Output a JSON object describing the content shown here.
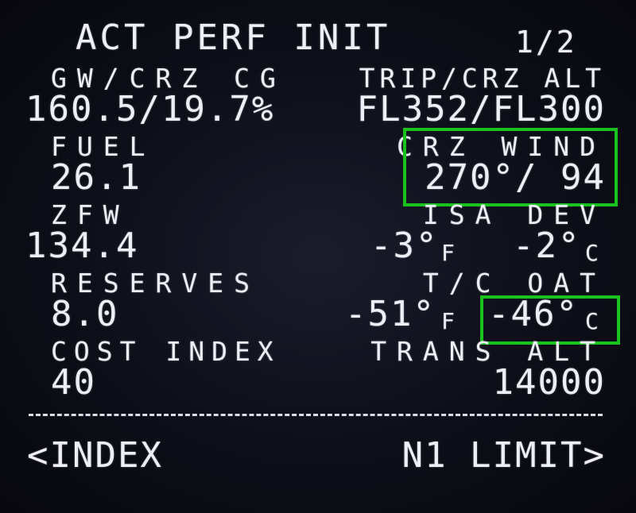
{
  "header": {
    "title": "ACT PERF INIT",
    "page": "1/2"
  },
  "rows": {
    "r1": {
      "left_label": "GW/CRZ CG",
      "left_value": "160.5/19.7%",
      "right_label": "TRIP/CRZ ALT",
      "right_value": "FL352/FL300"
    },
    "r2": {
      "left_label": "FUEL",
      "left_value": "26.1",
      "right_label": "CRZ WIND",
      "right_value": "270°/ 94"
    },
    "r3": {
      "left_label": "ZFW",
      "left_value": "134.4",
      "right_label": "ISA DEV",
      "right_f_value": "-3°",
      "right_f_unit": "F",
      "right_c_value": "-2°",
      "right_c_unit": "C"
    },
    "r4": {
      "left_label": "RESERVES",
      "left_value": "8.0",
      "right_label": "T/C OAT",
      "right_f_value": "-51°",
      "right_f_unit": "F",
      "right_c_value": "-46°",
      "right_c_unit": "C"
    },
    "r5": {
      "left_label": "COST INDEX",
      "left_value": "40",
      "right_label": "TRANS ALT",
      "right_value": "14000"
    }
  },
  "footer": {
    "left_prompt": "<INDEX",
    "right_prompt": "N1 LIMIT>"
  },
  "colors": {
    "text": "#eeeef6",
    "highlight_box": "#19c21f",
    "background": "#0d0e18"
  }
}
